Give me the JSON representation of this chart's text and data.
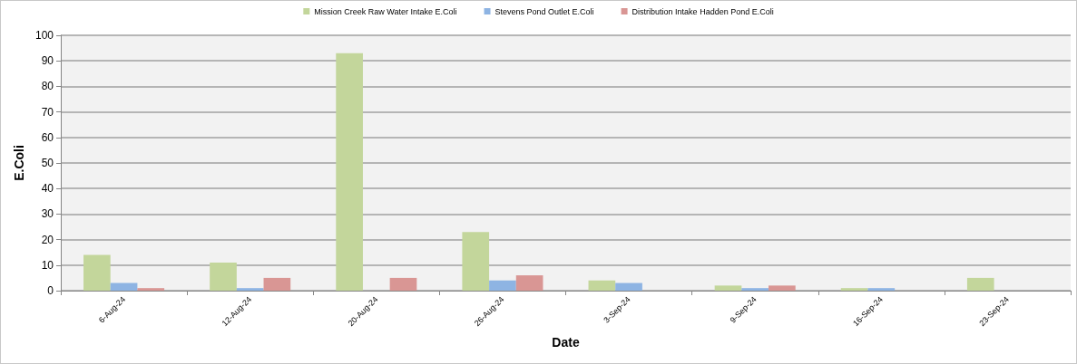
{
  "chart_data": {
    "type": "bar",
    "xlabel": "Date",
    "ylabel": "E.Coli",
    "categories": [
      "6-Aug-24",
      "12-Aug-24",
      "20-Aug-24",
      "26-Aug-24",
      "3-Sep-24",
      "9-Sep-24",
      "16-Sep-24",
      "23-Sep-24"
    ],
    "series": [
      {
        "name": "Mission Creek Raw Water Intake E.Coli",
        "color": "#c3d69b",
        "values": [
          14,
          11,
          93,
          23,
          4,
          2,
          1,
          5
        ]
      },
      {
        "name": "Stevens Pond Outlet E.Coli",
        "color": "#8eb4e3",
        "values": [
          3,
          1,
          null,
          4,
          3,
          1,
          1,
          null
        ]
      },
      {
        "name": "Distribution Intake Hadden Pond E.Coli",
        "color": "#d99694",
        "values": [
          1,
          5,
          5,
          6,
          null,
          2,
          null,
          null
        ]
      }
    ],
    "ylim": [
      0,
      100
    ],
    "yticks": [
      0,
      10,
      20,
      30,
      40,
      50,
      60,
      70,
      80,
      90,
      100
    ],
    "grid": "y",
    "legend": "top"
  }
}
